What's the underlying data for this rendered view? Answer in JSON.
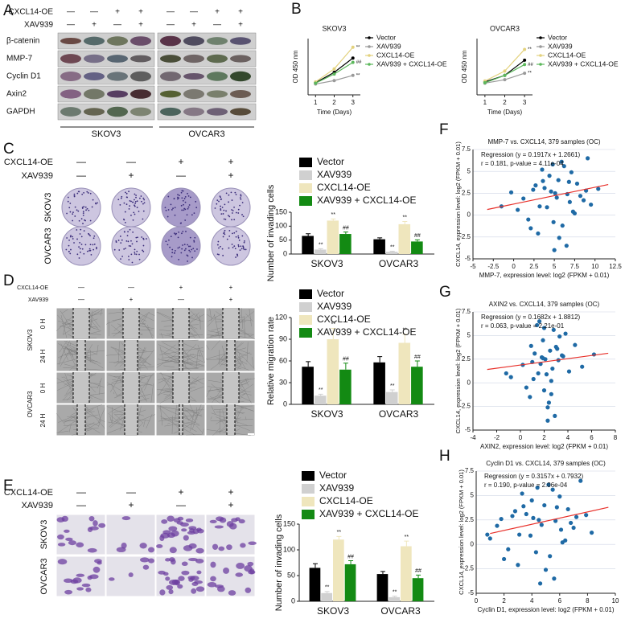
{
  "panel_labels": [
    "A",
    "B",
    "C",
    "D",
    "E",
    "F",
    "G",
    "H"
  ],
  "blot": {
    "treatments": [
      {
        "label": "CXCL14-OE",
        "marks": [
          "—",
          "—",
          "+",
          "+",
          "—",
          "—",
          "+",
          "+"
        ]
      },
      {
        "label": "XAV939",
        "marks": [
          "—",
          "+",
          "—",
          "+",
          "—",
          "+",
          "—",
          "+"
        ]
      }
    ],
    "proteins": [
      "β-catenin",
      "MMP-7",
      "Cyclin D1",
      "Axin2",
      "GAPDH"
    ],
    "cell_lines": [
      "SKOV3",
      "OVCAR3"
    ]
  },
  "invasion": {
    "treatments": [
      {
        "label": "CXCL14-OE",
        "marks": [
          "—",
          "—",
          "+",
          "+"
        ]
      },
      {
        "label": "XAV939",
        "marks": [
          "—",
          "+",
          "—",
          "+"
        ]
      }
    ],
    "rows": [
      "SKOV3",
      "OVCAR3"
    ]
  },
  "migration": {
    "treatments": [
      {
        "label": "CXCL14-OE",
        "marks": [
          "—",
          "—",
          "+",
          "+"
        ]
      },
      {
        "label": "XAV939",
        "marks": [
          "—",
          "+",
          "—",
          "+"
        ]
      }
    ],
    "groups": [
      {
        "label": "SKOV3",
        "times": [
          "0 H",
          "24 H"
        ]
      },
      {
        "label": "OVCAR3",
        "times": [
          "0 H",
          "24 H"
        ]
      }
    ]
  },
  "invasion_stain": {
    "treatments": [
      {
        "label": "CXCL14-OE",
        "marks": [
          "—",
          "—",
          "+",
          "+"
        ]
      },
      {
        "label": "XAV939",
        "marks": [
          "—",
          "+",
          "—",
          "+"
        ]
      }
    ],
    "rows": [
      "SKOV3",
      "OVCAR3"
    ]
  },
  "chart_data": [
    {
      "type": "line",
      "title": "SKOV3",
      "x_label": "Time (Days)",
      "y_label": "OD 450 nm",
      "x": [
        1,
        2,
        3
      ],
      "xlim": [
        0.6,
        3.4
      ],
      "xticks": [
        1,
        2,
        3
      ],
      "ylim": [
        0,
        1.3
      ],
      "series": [
        {
          "name": "Vector",
          "color": "#000000",
          "values": [
            0.28,
            0.52,
            0.85
          ]
        },
        {
          "name": "XAV939",
          "color": "#9a9a9a",
          "values": [
            0.25,
            0.33,
            0.45
          ],
          "end_mark": "**"
        },
        {
          "name": "CXCL14-OE",
          "color": "#e3d27e",
          "values": [
            0.3,
            0.6,
            1.1
          ],
          "end_mark": "**"
        },
        {
          "name": "XAV939 + CXCL14-OE",
          "color": "#5cb85c",
          "values": [
            0.27,
            0.48,
            0.75
          ],
          "end_mark": "##"
        }
      ]
    },
    {
      "type": "line",
      "title": "OVCAR3",
      "x_label": "Time (Days)",
      "y_label": "OD 450 nm",
      "x": [
        1,
        2,
        3
      ],
      "xlim": [
        0.6,
        3.4
      ],
      "xticks": [
        1,
        2,
        3
      ],
      "ylim": [
        0,
        1.3
      ],
      "series": [
        {
          "name": "Vector",
          "color": "#000000",
          "values": [
            0.3,
            0.45,
            0.8
          ]
        },
        {
          "name": "XAV939",
          "color": "#9a9a9a",
          "values": [
            0.27,
            0.35,
            0.5
          ],
          "end_mark": "**"
        },
        {
          "name": "CXCL14-OE",
          "color": "#e3d27e",
          "values": [
            0.32,
            0.55,
            1.05
          ],
          "end_mark": "**"
        },
        {
          "name": "XAV939 + CXCL14-OE",
          "color": "#5cb85c",
          "values": [
            0.28,
            0.45,
            0.7
          ],
          "end_mark": "##"
        }
      ]
    },
    {
      "type": "bar",
      "y_label": "Number of invading cells",
      "categories": [
        "SKOV3",
        "OVCAR3"
      ],
      "ylim": [
        0,
        150
      ],
      "yticks": [
        0,
        50,
        100,
        150
      ],
      "series": [
        {
          "name": "Vector",
          "color": "#000000",
          "values": [
            65,
            53
          ],
          "errors": [
            8,
            5
          ]
        },
        {
          "name": "XAV939",
          "color": "#d0d0d0",
          "values": [
            16,
            8
          ],
          "errors": [
            3,
            2
          ],
          "marks": [
            "**",
            "**"
          ]
        },
        {
          "name": "CXCL14-OE",
          "color": "#efe6bd",
          "values": [
            120,
            107
          ],
          "errors": [
            6,
            10
          ],
          "marks": [
            "**",
            "**"
          ]
        },
        {
          "name": "XAV939 + CXCL14-OE",
          "color": "#138a13",
          "values": [
            72,
            45
          ],
          "errors": [
            7,
            6
          ],
          "marks": [
            "##",
            "##"
          ]
        }
      ]
    },
    {
      "type": "bar",
      "y_label": "Relative migration rate",
      "categories": [
        "SKOV3",
        "OVCAR3"
      ],
      "ylim": [
        0,
        120
      ],
      "yticks": [
        0,
        30,
        60,
        90,
        120
      ],
      "series": [
        {
          "name": "Vector",
          "color": "#000000",
          "values": [
            52,
            58
          ],
          "errors": [
            7,
            8
          ]
        },
        {
          "name": "XAV939",
          "color": "#d0d0d0",
          "values": [
            12,
            17
          ],
          "errors": [
            2,
            3
          ],
          "marks": [
            "**",
            "**"
          ]
        },
        {
          "name": "CXCL14-OE",
          "color": "#efe6bd",
          "values": [
            90,
            85
          ],
          "errors": [
            15,
            12
          ],
          "marks": [
            "**",
            "**"
          ]
        },
        {
          "name": "XAV939 + CXCL14-OE",
          "color": "#138a13",
          "values": [
            48,
            52
          ],
          "errors": [
            9,
            8
          ],
          "marks": [
            "##",
            "##"
          ]
        }
      ]
    },
    {
      "type": "bar",
      "y_label": "Number of invading cells",
      "categories": [
        "SKOV3",
        "OVCAR3"
      ],
      "ylim": [
        0,
        150
      ],
      "yticks": [
        0,
        50,
        100,
        150
      ],
      "series": [
        {
          "name": "Vector",
          "color": "#000000",
          "values": [
            65,
            53
          ],
          "errors": [
            8,
            5
          ]
        },
        {
          "name": "XAV939",
          "color": "#d0d0d0",
          "values": [
            16,
            8
          ],
          "errors": [
            3,
            2
          ],
          "marks": [
            "**",
            "**"
          ]
        },
        {
          "name": "CXCL14-OE",
          "color": "#efe6bd",
          "values": [
            120,
            107
          ],
          "errors": [
            6,
            10
          ],
          "marks": [
            "**",
            "**"
          ]
        },
        {
          "name": "XAV939 + CXCL14-OE",
          "color": "#138a13",
          "values": [
            72,
            45
          ],
          "errors": [
            7,
            6
          ],
          "marks": [
            "##",
            "##"
          ]
        }
      ]
    },
    {
      "type": "scatter",
      "title": "MMP-7 vs. CXCL14, 379 samples (OC)",
      "regression": "Regression (y = 0.1917x + 1.2661)",
      "stats": "r = 0.181, p-value = 4.11e-04",
      "x_label": "MMP-7, expression level: log2 (FPKM + 0.01)",
      "y_label": "CXCL14, expression level: log2 (FPKM + 0.01)",
      "color": "#1f6aa5",
      "fit_color": "#e8302a",
      "fit": {
        "slope": 0.1917,
        "intercept": 1.2661
      },
      "xlim": [
        -5,
        12.5
      ],
      "xticks": [
        -5,
        -2.5,
        0,
        2.5,
        5,
        7.5,
        10,
        12.5
      ],
      "ylim": [
        -5,
        7.5
      ],
      "yticks": [
        -5,
        -2.5,
        0,
        2.5,
        5,
        7.5
      ],
      "x": [
        5.1,
        3.2,
        6.8,
        7.5,
        2.1,
        4.4,
        8.9,
        5.6,
        1.2,
        6.2,
        3.8,
        9.5,
        4.9,
        0.5,
        7.1,
        5.3,
        2.7,
        6.5,
        8.2,
        3.5,
        4.1,
        10.4,
        5.9,
        6.9,
        1.8,
        7.8,
        4.6,
        3.0,
        5.5,
        9.1,
        -1.5,
        6.0,
        2.4,
        7.3,
        4.8,
        8.6,
        3.6,
        5.0,
        6.6,
        -0.3
      ],
      "y": [
        2.5,
        1.0,
        3.8,
        0.2,
        -1.5,
        4.5,
        2.8,
        -2.6,
        1.9,
        5.6,
        3.1,
        1.2,
        -0.8,
        0.6,
        4.9,
        2.0,
        3.4,
        -3.5,
        2.2,
        5.2,
        0.9,
        3.0,
        6.1,
        1.5,
        -0.5,
        3.6,
        2.7,
        -2.1,
        4.0,
        6.5,
        1.0,
        -1.2,
        2.9,
        0.4,
        5.8,
        1.7,
        3.9,
        -4.0,
        2.4,
        2.6
      ]
    },
    {
      "type": "scatter",
      "title": "AXIN2 vs. CXCL14, 379 samples (OC)",
      "regression": "Regression (y = 0.1682x + 1.8812)",
      "stats": "r = 0.063, p-value = 2.21e-01",
      "x_label": "AXIN2, expression level: log2 (FPKM + 0.01)",
      "y_label": "CXCL14, expression level: log2 (FPKM + 0.01)",
      "color": "#1f6aa5",
      "fit_color": "#e8302a",
      "fit": {
        "slope": 0.1682,
        "intercept": 1.8812
      },
      "xlim": [
        -4,
        8
      ],
      "xticks": [
        -4,
        -2,
        0,
        2,
        4,
        6,
        8
      ],
      "ylim": [
        -5,
        7.5
      ],
      "yticks": [
        -5,
        -2.5,
        0,
        2.5,
        5,
        7.5
      ],
      "x": [
        2.1,
        1.5,
        3.0,
        2.6,
        0.8,
        1.9,
        3.6,
        2.3,
        0.2,
        2.8,
        1.2,
        4.1,
        2.0,
        -0.8,
        3.3,
        1.7,
        2.5,
        2.9,
        1.0,
        3.8,
        2.2,
        6.2,
        1.4,
        2.7,
        0.5,
        3.1,
        1.8,
        2.4,
        4.6,
        1.6,
        -1.2,
        2.6,
        3.5,
        1.1,
        2.0,
        5.2,
        0.9,
        2.3,
        3.2,
        1.9
      ],
      "y": [
        2.5,
        1.0,
        3.8,
        0.2,
        -1.5,
        4.5,
        2.8,
        -2.6,
        1.9,
        5.6,
        3.1,
        1.2,
        -0.8,
        0.6,
        4.9,
        2.0,
        3.4,
        -3.5,
        2.2,
        5.2,
        0.9,
        3.0,
        6.1,
        1.5,
        -0.5,
        3.6,
        2.7,
        -2.1,
        4.0,
        6.5,
        1.0,
        -1.2,
        2.9,
        0.4,
        5.8,
        1.7,
        3.9,
        -4.0,
        2.4,
        2.6
      ]
    },
    {
      "type": "scatter",
      "title": "Cyclin D1 vs. CXCL14, 379 samples (OC)",
      "regression": "Regression (y = 0.3157x + 0.7932)",
      "stats": "r = 0.190, p-value = 2.06e-04",
      "x_label": "Cyclin D1, expression level: log2 (FPKM + 0.01)",
      "y_label": "CXCL14, expression level: log2 (FPKM + 0.01)",
      "color": "#1f6aa5",
      "fit_color": "#e8302a",
      "fit": {
        "slope": 0.3157,
        "intercept": 0.7932
      },
      "xlim": [
        0,
        10
      ],
      "xticks": [
        0,
        2,
        4,
        6,
        8,
        10
      ],
      "ylim": [
        -5,
        7.5
      ],
      "yticks": [
        -5,
        -2.5,
        0,
        2.5,
        5,
        7.5
      ],
      "x": [
        4.5,
        3.1,
        5.8,
        6.2,
        2.0,
        4.0,
        7.2,
        5.0,
        1.5,
        5.5,
        3.6,
        8.3,
        4.3,
        1.0,
        6.0,
        4.7,
        2.8,
        5.6,
        6.8,
        3.3,
        3.9,
        7.9,
        5.2,
        6.1,
        2.3,
        6.6,
        4.1,
        3.0,
        4.9,
        7.5,
        0.8,
        5.3,
        2.6,
        6.4,
        4.4,
        7.0,
        3.4,
        4.6,
        5.7,
        1.8
      ],
      "y": [
        2.5,
        1.0,
        3.8,
        0.2,
        -1.5,
        4.5,
        2.8,
        -2.6,
        1.9,
        5.6,
        3.1,
        1.2,
        -0.8,
        0.6,
        4.9,
        2.0,
        3.4,
        -3.5,
        2.2,
        5.2,
        0.9,
        3.0,
        6.1,
        1.5,
        -0.5,
        3.6,
        2.7,
        -2.1,
        4.0,
        6.5,
        1.0,
        -1.2,
        2.9,
        0.4,
        5.8,
        1.7,
        3.9,
        -4.0,
        2.4,
        2.6
      ]
    }
  ]
}
